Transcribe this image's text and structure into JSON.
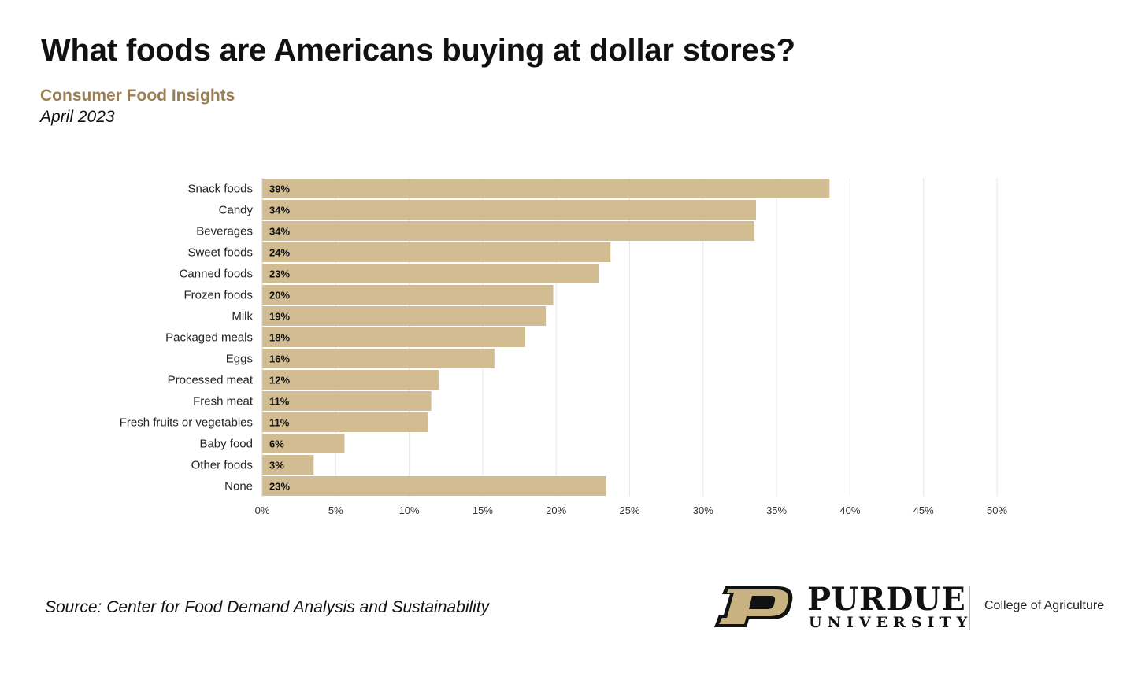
{
  "header": {
    "title": "What foods are Americans buying at dollar stores?",
    "subtitle": "Consumer Food Insights",
    "date": "April 2023"
  },
  "footer": {
    "source": "Source:  Center for Food Demand Analysis and Sustainability",
    "logo_name": "PURDUE",
    "logo_sub": "UNIVERSITY",
    "college": "College of Agriculture"
  },
  "colors": {
    "bar": "#d2bc92",
    "subtitle": "#9a7f54",
    "grid": "#e6e6e6"
  },
  "chart_data": {
    "type": "bar",
    "orientation": "horizontal",
    "categories": [
      "Snack foods",
      "Candy",
      "Beverages",
      "Sweet foods",
      "Canned foods",
      "Frozen foods",
      "Milk",
      "Packaged meals",
      "Eggs",
      "Processed meat",
      "Fresh meat",
      "Fresh fruits or vegetables",
      "Baby food",
      "Other foods",
      "None"
    ],
    "values": [
      38.6,
      33.6,
      33.5,
      23.7,
      22.9,
      19.8,
      19.3,
      17.9,
      15.8,
      12.0,
      11.5,
      11.3,
      5.6,
      3.5,
      23.4
    ],
    "data_labels": [
      "39%",
      "34%",
      "34%",
      "24%",
      "23%",
      "20%",
      "19%",
      "18%",
      "16%",
      "12%",
      "11%",
      "11%",
      "6%",
      "3%",
      "23%"
    ],
    "xlim": [
      0,
      50
    ],
    "xticks": [
      0,
      5,
      10,
      15,
      20,
      25,
      30,
      35,
      40,
      45,
      50
    ],
    "xtick_labels": [
      "0%",
      "5%",
      "10%",
      "15%",
      "20%",
      "25%",
      "30%",
      "35%",
      "40%",
      "45%",
      "50%"
    ],
    "grid": true,
    "legend": "none"
  }
}
